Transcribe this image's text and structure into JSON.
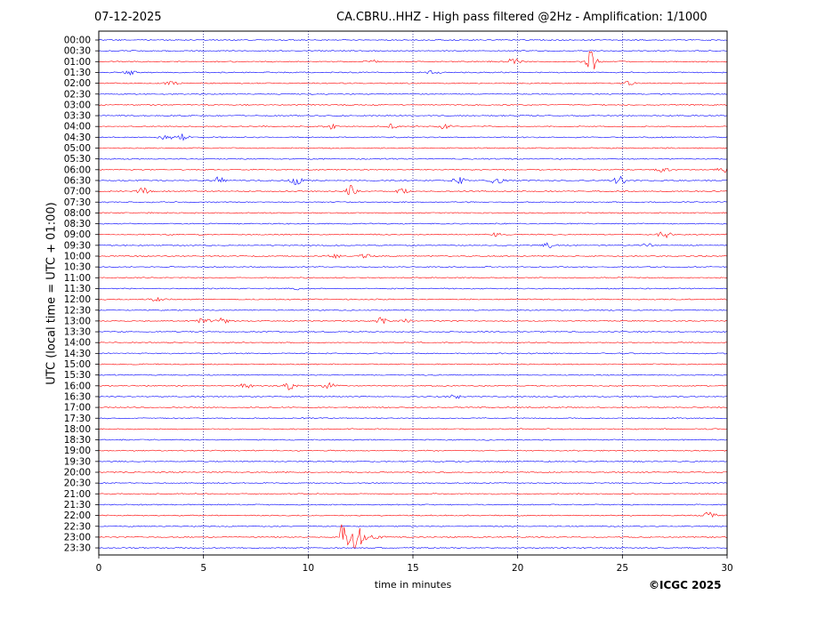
{
  "header": {
    "date": "07-12-2025",
    "title": "CA.CBRU..HHZ - High pass filtered @2Hz - Amplification: 1/1000"
  },
  "footer": {
    "copyright": "©ICGC 2025"
  },
  "chart_data": {
    "type": "line",
    "title": "CA.CBRU..HHZ - High pass filtered @2Hz - Amplification: 1/1000",
    "xlabel": "time in minutes",
    "ylabel": "UTC (local time = UTC + 01:00)",
    "xlim": [
      0,
      30
    ],
    "xticks": [
      0,
      5,
      10,
      15,
      20,
      25,
      30
    ],
    "grid": "vertical dotted at 5-minute intervals",
    "colors": {
      "odd_hour_rows": "#0000ff",
      "even_hour_rows": "#ff0000",
      "grid": "#000080"
    },
    "rows": [
      "00:00",
      "00:30",
      "01:00",
      "01:30",
      "02:00",
      "02:30",
      "03:00",
      "03:30",
      "04:00",
      "04:30",
      "05:00",
      "05:30",
      "06:00",
      "06:30",
      "07:00",
      "07:30",
      "08:00",
      "08:30",
      "09:00",
      "09:30",
      "10:00",
      "10:30",
      "11:00",
      "11:30",
      "12:00",
      "12:30",
      "13:00",
      "13:30",
      "14:00",
      "14:30",
      "15:00",
      "15:30",
      "16:00",
      "16:30",
      "17:00",
      "17:30",
      "18:00",
      "18:30",
      "19:00",
      "19:30",
      "20:00",
      "20:30",
      "21:00",
      "21:30",
      "22:00",
      "22:30",
      "23:00",
      "23:30"
    ],
    "row_colors": [
      "blue",
      "blue",
      "red",
      "blue",
      "red",
      "blue",
      "red",
      "blue",
      "red",
      "blue",
      "red",
      "blue",
      "red",
      "blue",
      "red",
      "blue",
      "red",
      "blue",
      "red",
      "blue",
      "red",
      "blue",
      "red",
      "blue",
      "red",
      "blue",
      "red",
      "blue",
      "red",
      "blue",
      "red",
      "blue",
      "red",
      "blue",
      "red",
      "blue",
      "red",
      "blue",
      "red",
      "blue",
      "red",
      "blue",
      "red",
      "blue",
      "red",
      "blue",
      "red",
      "blue"
    ],
    "events": [
      {
        "row": "01:00",
        "minute": 19.8,
        "amplitude": 0.35
      },
      {
        "row": "01:00",
        "minute": 23.5,
        "amplitude": 1.2
      },
      {
        "row": "01:00",
        "minute": 13.1,
        "amplitude": 0.25
      },
      {
        "row": "01:30",
        "minute": 1.5,
        "amplitude": 0.25
      },
      {
        "row": "01:30",
        "minute": 16.0,
        "amplitude": 0.2
      },
      {
        "row": "02:00",
        "minute": 3.5,
        "amplitude": 0.3
      },
      {
        "row": "02:00",
        "minute": 25.3,
        "amplitude": 0.2
      },
      {
        "row": "04:00",
        "minute": 11.2,
        "amplitude": 0.3
      },
      {
        "row": "04:00",
        "minute": 14.0,
        "amplitude": 0.3
      },
      {
        "row": "04:00",
        "minute": 16.5,
        "amplitude": 0.25
      },
      {
        "row": "04:30",
        "minute": 3.2,
        "amplitude": 0.3
      },
      {
        "row": "04:30",
        "minute": 4.0,
        "amplitude": 0.45
      },
      {
        "row": "06:00",
        "minute": 27.0,
        "amplitude": 0.35
      },
      {
        "row": "06:00",
        "minute": 29.8,
        "amplitude": 0.3
      },
      {
        "row": "06:30",
        "minute": 5.7,
        "amplitude": 0.45
      },
      {
        "row": "06:30",
        "minute": 9.5,
        "amplitude": 0.6
      },
      {
        "row": "06:30",
        "minute": 17.2,
        "amplitude": 0.4
      },
      {
        "row": "06:30",
        "minute": 19.0,
        "amplitude": 0.4
      },
      {
        "row": "06:30",
        "minute": 24.9,
        "amplitude": 0.55
      },
      {
        "row": "07:00",
        "minute": 2.1,
        "amplitude": 0.4
      },
      {
        "row": "07:00",
        "minute": 12.0,
        "amplitude": 0.65
      },
      {
        "row": "07:00",
        "minute": 14.5,
        "amplitude": 0.3
      },
      {
        "row": "09:00",
        "minute": 19.0,
        "amplitude": 0.25
      },
      {
        "row": "09:00",
        "minute": 27.0,
        "amplitude": 0.4
      },
      {
        "row": "09:30",
        "minute": 21.5,
        "amplitude": 0.25
      },
      {
        "row": "09:30",
        "minute": 26.2,
        "amplitude": 0.3
      },
      {
        "row": "10:00",
        "minute": 11.2,
        "amplitude": 0.3
      },
      {
        "row": "10:00",
        "minute": 12.7,
        "amplitude": 0.25
      },
      {
        "row": "11:30",
        "minute": 9.3,
        "amplitude": 0.3
      },
      {
        "row": "12:00",
        "minute": 2.8,
        "amplitude": 0.2
      },
      {
        "row": "13:00",
        "minute": 5.0,
        "amplitude": 0.35
      },
      {
        "row": "13:00",
        "minute": 5.9,
        "amplitude": 0.3
      },
      {
        "row": "13:00",
        "minute": 13.5,
        "amplitude": 0.4
      },
      {
        "row": "13:00",
        "minute": 14.6,
        "amplitude": 0.25
      },
      {
        "row": "16:00",
        "minute": 7.0,
        "amplitude": 0.25
      },
      {
        "row": "16:00",
        "minute": 9.1,
        "amplitude": 0.5
      },
      {
        "row": "16:00",
        "minute": 11.0,
        "amplitude": 0.3
      },
      {
        "row": "16:30",
        "minute": 17.0,
        "amplitude": 0.2
      },
      {
        "row": "22:00",
        "minute": 29.2,
        "amplitude": 0.45
      },
      {
        "row": "23:00",
        "minute": 11.5,
        "amplitude": 1.6
      },
      {
        "row": "23:00",
        "minute": 12.3,
        "amplitude": 1.0
      }
    ]
  }
}
